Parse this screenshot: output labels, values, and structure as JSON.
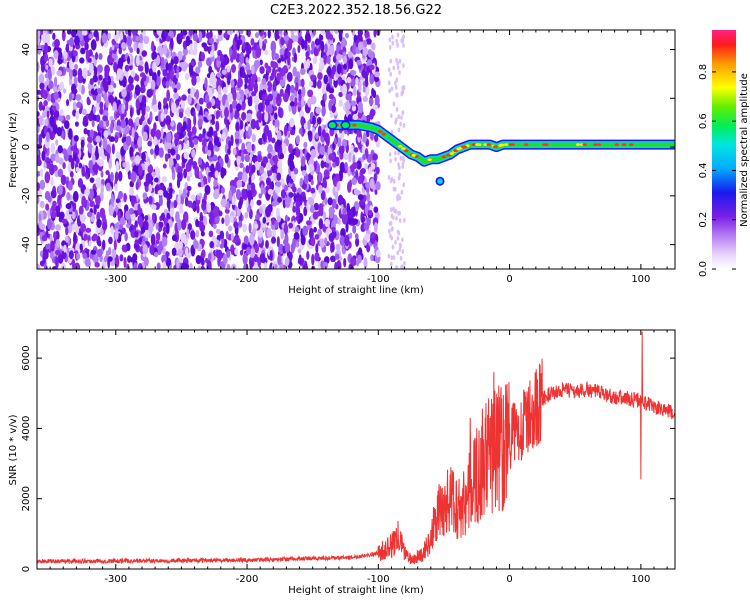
{
  "title": "C2E3.2022.352.18.56.G22",
  "colors": {
    "snr_line": "#ee3333",
    "doppler_track": "#22dd22",
    "noise": "#7a1fe6",
    "axis": "#000000"
  },
  "chart_data": [
    {
      "type": "heatmap",
      "xlabel": "Height of straight line (km)",
      "ylabel": "Frequency (Hz)",
      "xlim": [
        -360,
        126
      ],
      "ylim": [
        -50,
        48
      ],
      "x_ticks": [
        -300,
        -200,
        -100,
        0,
        100
      ],
      "y_ticks": [
        -40,
        -20,
        0,
        20,
        40
      ],
      "x_tick_labels": [
        "-300",
        "-200",
        "-100",
        "0",
        "100"
      ],
      "y_tick_labels": [
        "-40",
        "-20",
        "0",
        "20",
        "40"
      ],
      "noise_region": {
        "x_end": -100,
        "sparse_x_range": [
          -92,
          -80
        ]
      },
      "signal_track": {
        "x": [
          -135,
          -125,
          -115,
          -105,
          -100,
          -95,
          -90,
          -85,
          -80,
          -75,
          -70,
          -65,
          -60,
          -55,
          -50,
          -45,
          -40,
          -35,
          -30,
          -25,
          -20,
          -15,
          -10,
          -5,
          0,
          10,
          20,
          40,
          60,
          80,
          100,
          126
        ],
        "y": [
          9,
          9,
          9,
          8,
          7,
          5,
          3,
          1,
          -1,
          -3,
          -4,
          -6,
          -5,
          -5,
          -4,
          -3,
          -1,
          0,
          1,
          1,
          1,
          1,
          0,
          1,
          1,
          1,
          1,
          1,
          1,
          1,
          1,
          1
        ]
      },
      "isolated_point": {
        "x": -53,
        "y": -14
      },
      "colorbar": {
        "label": "Normalized spectral amplitude",
        "ticks": [
          0.0,
          0.2,
          0.4,
          0.6,
          0.8
        ],
        "tick_labels": [
          "0.0",
          "0.2",
          "0.4",
          "0.6",
          "0.8"
        ],
        "range": [
          0,
          0.97
        ]
      }
    },
    {
      "type": "line",
      "xlabel": "Height of straight line (km)",
      "ylabel": "SNR (10 * v/v)",
      "xlim": [
        -360,
        126
      ],
      "ylim": [
        0,
        6800
      ],
      "x_ticks": [
        -300,
        -200,
        -100,
        0,
        100
      ],
      "y_ticks": [
        0,
        2000,
        4000,
        6000
      ],
      "x_tick_labels": [
        "-300",
        "-200",
        "-100",
        "0",
        "100"
      ],
      "y_tick_labels": [
        "0",
        "2000",
        "4000",
        "6000"
      ],
      "series": [
        {
          "name": "SNR",
          "x": [
            -360,
            -300,
            -200,
            -120,
            -100,
            -90,
            -85,
            -80,
            -75,
            -70,
            -65,
            -60,
            -55,
            -50,
            -45,
            -40,
            -35,
            -30,
            -25,
            -20,
            -15,
            -10,
            -5,
            0,
            5,
            10,
            15,
            20,
            25,
            30,
            40,
            50,
            60,
            70,
            80,
            90,
            100,
            105,
            110,
            120,
            126
          ],
          "y": [
            220,
            230,
            250,
            330,
            450,
            650,
            900,
            500,
            250,
            350,
            500,
            900,
            1500,
            1800,
            2000,
            1700,
            1900,
            2300,
            2700,
            3000,
            3300,
            3400,
            3600,
            3700,
            3900,
            4100,
            4300,
            4600,
            4850,
            4950,
            5100,
            5050,
            5100,
            5000,
            4900,
            4850,
            4800,
            4700,
            4600,
            4500,
            4400
          ],
          "spikes": [
            {
              "x": -30,
              "y": 4300
            },
            {
              "x": -12,
              "y": 5600
            },
            {
              "x": 101,
              "y": 6750
            },
            {
              "x": 100,
              "y": 2550
            }
          ]
        }
      ]
    }
  ]
}
